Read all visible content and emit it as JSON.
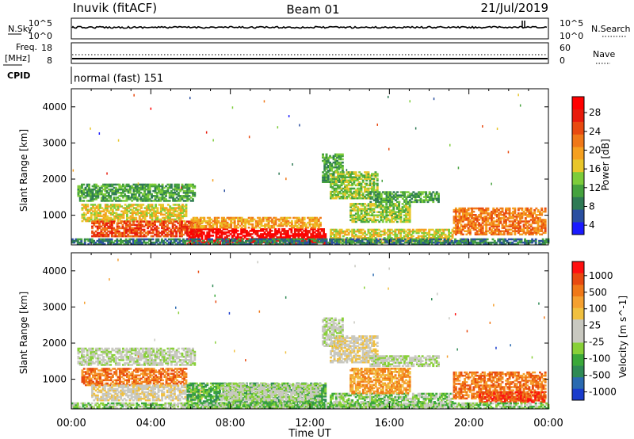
{
  "header": {
    "station": "Inuvik (fitACF)",
    "beam": "Beam 01",
    "date": "21/Jul/2019"
  },
  "panels": {
    "nsky": {
      "left_label": "N.Sky",
      "right_label": "N.Search",
      "left_ticks": [
        "10^5",
        "10^0"
      ],
      "right_ticks": [
        "10^5",
        "10^0"
      ]
    },
    "freq": {
      "left_label_top": "Freq.",
      "left_label_bottom": "[MHz]",
      "right_label": "Nave",
      "left_ticks": [
        "18",
        "8"
      ],
      "right_ticks": [
        "60",
        "0"
      ]
    },
    "cpid": {
      "label": "CPID",
      "text": "normal (fast) 151"
    }
  },
  "chart_data": [
    {
      "type": "heatmap",
      "title": "",
      "xlabel": "Time UT",
      "ylabel": "Slant Range [km]",
      "x_ticks": [
        "00:00",
        "04:00",
        "08:00",
        "12:00",
        "16:00",
        "20:00",
        "00:00"
      ],
      "xlim": [
        0,
        24
      ],
      "ylim": [
        180,
        4500
      ],
      "y_ticks": [
        1000,
        2000,
        3000,
        4000
      ],
      "colorbar": {
        "label": "Power [dB]",
        "ticks": [
          "4",
          "8",
          "12",
          "16",
          "20",
          "24",
          "28"
        ],
        "colors": [
          "#1a1aff",
          "#2a4fa0",
          "#2f7a55",
          "#45a23e",
          "#7dcc3a",
          "#e8c62a",
          "#f5a020",
          "#f07818",
          "#e84a10",
          "#e81b0c",
          "#ff0000"
        ]
      },
      "regions": [
        {
          "t": [
            0.3,
            6.2
          ],
          "r": [
            1380,
            1850
          ],
          "level": 3
        },
        {
          "t": [
            0.5,
            5.8
          ],
          "r": [
            820,
            1280
          ],
          "level": 5
        },
        {
          "t": [
            1.0,
            6.5
          ],
          "r": [
            400,
            820
          ],
          "level": 8
        },
        {
          "t": [
            5.8,
            12.8
          ],
          "r": [
            190,
            640
          ],
          "level": 10
        },
        {
          "t": [
            6.0,
            12.5
          ],
          "r": [
            640,
            940
          ],
          "level": 6
        },
        {
          "t": [
            12.6,
            13.6
          ],
          "r": [
            1900,
            2700
          ],
          "level": 3
        },
        {
          "t": [
            13.0,
            15.4
          ],
          "r": [
            1450,
            2200
          ],
          "level": 4
        },
        {
          "t": [
            15.0,
            18.5
          ],
          "r": [
            1350,
            1650
          ],
          "level": 3
        },
        {
          "t": [
            13.0,
            19.2
          ],
          "r": [
            220,
            620
          ],
          "level": 5
        },
        {
          "t": [
            14.0,
            17.0
          ],
          "r": [
            800,
            1300
          ],
          "level": 4
        },
        {
          "t": [
            19.2,
            23.8
          ],
          "r": [
            450,
            1200
          ],
          "level": 7
        },
        {
          "t": [
            0.0,
            24.0
          ],
          "r": [
            180,
            320
          ],
          "level": 2
        }
      ]
    },
    {
      "type": "heatmap",
      "title": "",
      "xlabel": "Time UT",
      "ylabel": "Slant Range [km]",
      "x_ticks": [
        "00:00",
        "04:00",
        "08:00",
        "12:00",
        "16:00",
        "20:00",
        "00:00"
      ],
      "xlim": [
        0,
        24
      ],
      "ylim": [
        180,
        4500
      ],
      "y_ticks": [
        1000,
        2000,
        3000,
        4000
      ],
      "colorbar": {
        "label": "Velocity [m s^-1]",
        "ticks": [
          "1000",
          "500",
          "100",
          "25",
          "-25",
          "-100",
          "-500",
          "-1000"
        ],
        "colors": [
          "#1a3ccc",
          "#2a6ab0",
          "#2e8a55",
          "#3aa83a",
          "#88d038",
          "#c8c8c0",
          "#c8c8c0",
          "#f0c040",
          "#f5a030",
          "#f07818",
          "#e84a10",
          "#ff1010"
        ]
      },
      "regions": [
        {
          "t": [
            0.3,
            6.2
          ],
          "r": [
            1380,
            1850
          ],
          "level": 5
        },
        {
          "t": [
            0.5,
            5.8
          ],
          "r": [
            820,
            1280
          ],
          "level": 9
        },
        {
          "t": [
            1.0,
            6.5
          ],
          "r": [
            400,
            820
          ],
          "level": 6
        },
        {
          "t": [
            5.8,
            12.8
          ],
          "r": [
            190,
            900
          ],
          "level": 3
        },
        {
          "t": [
            7.5,
            12.5
          ],
          "r": [
            400,
            880
          ],
          "level": 5
        },
        {
          "t": [
            12.6,
            13.6
          ],
          "r": [
            1900,
            2700
          ],
          "level": 5
        },
        {
          "t": [
            13.0,
            15.4
          ],
          "r": [
            1450,
            2200
          ],
          "level": 6
        },
        {
          "t": [
            15.0,
            18.5
          ],
          "r": [
            1350,
            1650
          ],
          "level": 5
        },
        {
          "t": [
            13.0,
            19.2
          ],
          "r": [
            220,
            620
          ],
          "level": 4
        },
        {
          "t": [
            14.0,
            17.0
          ],
          "r": [
            600,
            1300
          ],
          "level": 8
        },
        {
          "t": [
            19.2,
            23.8
          ],
          "r": [
            450,
            1200
          ],
          "level": 9
        },
        {
          "t": [
            20.5,
            23.8
          ],
          "r": [
            350,
            650
          ],
          "level": 10
        },
        {
          "t": [
            0.0,
            24.0
          ],
          "r": [
            180,
            320
          ],
          "level": 4
        }
      ]
    }
  ]
}
